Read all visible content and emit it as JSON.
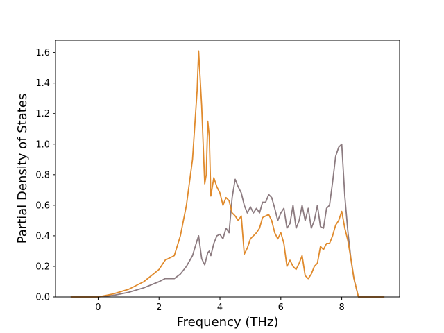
{
  "chart_data": {
    "type": "line",
    "xlabel": "Frequency (THz)",
    "ylabel": "Partial Density of States",
    "xlim": [
      -1.4,
      9.9
    ],
    "ylim": [
      0.0,
      1.68
    ],
    "xticks": [
      0,
      2,
      4,
      6,
      8
    ],
    "xtick_labels": [
      "0",
      "2",
      "4",
      "6",
      "8"
    ],
    "yticks": [
      0.0,
      0.2,
      0.4,
      0.6,
      0.8,
      1.0,
      1.2,
      1.4,
      1.6
    ],
    "ytick_labels": [
      "0.0",
      "0.2",
      "0.4",
      "0.6",
      "0.8",
      "1.0",
      "1.2",
      "1.4",
      "1.6"
    ],
    "grid": false,
    "series": [
      {
        "color": "#8c7b80",
        "x": [
          -0.9,
          0.0,
          0.5,
          1.0,
          1.5,
          2.0,
          2.2,
          2.5,
          2.7,
          2.9,
          3.1,
          3.25,
          3.3,
          3.4,
          3.5,
          3.6,
          3.65,
          3.7,
          3.8,
          3.9,
          4.0,
          4.1,
          4.2,
          4.3,
          4.4,
          4.5,
          4.6,
          4.7,
          4.8,
          4.9,
          5.0,
          5.1,
          5.2,
          5.3,
          5.4,
          5.5,
          5.6,
          5.7,
          5.8,
          5.9,
          6.0,
          6.1,
          6.2,
          6.3,
          6.4,
          6.5,
          6.6,
          6.7,
          6.8,
          6.9,
          7.0,
          7.1,
          7.2,
          7.3,
          7.4,
          7.5,
          7.6,
          7.7,
          7.8,
          7.9,
          8.0,
          8.1,
          8.2,
          8.3,
          8.4,
          8.5,
          8.55,
          9.4
        ],
        "y": [
          0.0,
          0.0,
          0.01,
          0.03,
          0.06,
          0.1,
          0.12,
          0.12,
          0.15,
          0.2,
          0.27,
          0.37,
          0.4,
          0.25,
          0.21,
          0.29,
          0.3,
          0.27,
          0.35,
          0.4,
          0.41,
          0.38,
          0.45,
          0.42,
          0.65,
          0.77,
          0.72,
          0.68,
          0.6,
          0.55,
          0.59,
          0.55,
          0.58,
          0.55,
          0.62,
          0.62,
          0.67,
          0.65,
          0.58,
          0.5,
          0.55,
          0.58,
          0.45,
          0.48,
          0.6,
          0.45,
          0.5,
          0.6,
          0.5,
          0.58,
          0.45,
          0.5,
          0.6,
          0.46,
          0.45,
          0.58,
          0.6,
          0.75,
          0.92,
          0.98,
          1.0,
          0.66,
          0.43,
          0.25,
          0.12,
          0.04,
          0.0,
          0.0
        ]
      },
      {
        "color": "#e08a2c",
        "x": [
          -0.9,
          0.0,
          0.5,
          1.0,
          1.5,
          2.0,
          2.2,
          2.5,
          2.7,
          2.9,
          3.1,
          3.2,
          3.25,
          3.3,
          3.4,
          3.5,
          3.55,
          3.6,
          3.65,
          3.7,
          3.8,
          3.9,
          4.0,
          4.1,
          4.2,
          4.3,
          4.4,
          4.5,
          4.6,
          4.7,
          4.8,
          4.9,
          5.0,
          5.1,
          5.2,
          5.3,
          5.4,
          5.5,
          5.6,
          5.7,
          5.8,
          5.9,
          6.0,
          6.1,
          6.2,
          6.3,
          6.4,
          6.5,
          6.6,
          6.7,
          6.8,
          6.9,
          7.0,
          7.1,
          7.2,
          7.3,
          7.4,
          7.5,
          7.6,
          7.7,
          7.8,
          7.9,
          8.0,
          8.1,
          8.2,
          8.3,
          8.4,
          8.5,
          8.55,
          9.4
        ],
        "y": [
          0.0,
          0.0,
          0.02,
          0.05,
          0.1,
          0.18,
          0.24,
          0.27,
          0.4,
          0.6,
          0.9,
          1.2,
          1.35,
          1.61,
          1.25,
          0.74,
          0.8,
          1.15,
          1.05,
          0.66,
          0.78,
          0.72,
          0.68,
          0.6,
          0.65,
          0.63,
          0.55,
          0.53,
          0.5,
          0.53,
          0.28,
          0.32,
          0.38,
          0.4,
          0.42,
          0.45,
          0.52,
          0.53,
          0.54,
          0.5,
          0.42,
          0.38,
          0.42,
          0.35,
          0.2,
          0.24,
          0.2,
          0.18,
          0.22,
          0.27,
          0.14,
          0.12,
          0.15,
          0.2,
          0.22,
          0.33,
          0.31,
          0.35,
          0.35,
          0.4,
          0.47,
          0.5,
          0.56,
          0.45,
          0.37,
          0.25,
          0.12,
          0.04,
          0.0,
          0.0
        ]
      }
    ]
  }
}
